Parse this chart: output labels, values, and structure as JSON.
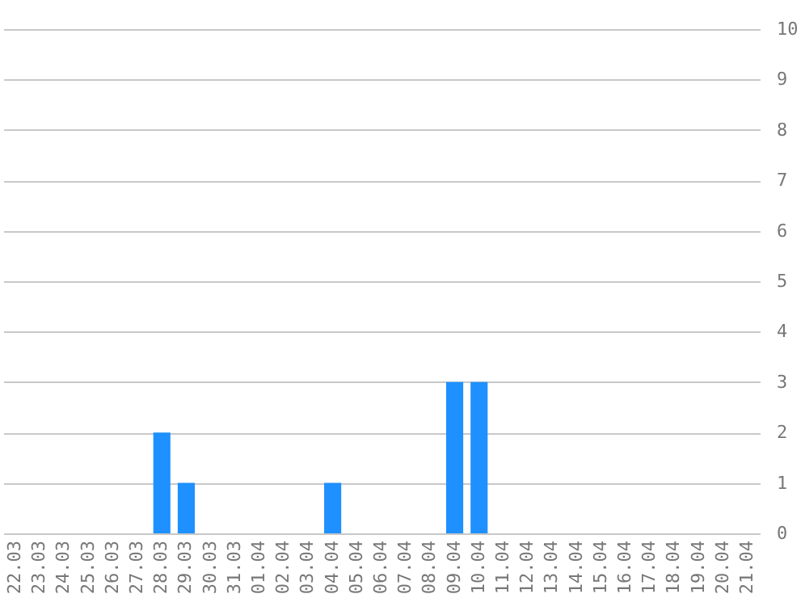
{
  "chart_data": {
    "type": "bar",
    "categories": [
      "22.03",
      "23.03",
      "24.03",
      "25.03",
      "26.03",
      "27.03",
      "28.03",
      "29.03",
      "30.03",
      "31.03",
      "01.04",
      "02.04",
      "03.04",
      "04.04",
      "05.04",
      "06.04",
      "07.04",
      "08.04",
      "09.04",
      "10.04",
      "11.04",
      "12.04",
      "13.04",
      "14.04",
      "15.04",
      "16.04",
      "17.04",
      "18.04",
      "19.04",
      "20.04",
      "21.04"
    ],
    "values": [
      0,
      0,
      0,
      0,
      0,
      0,
      2,
      1,
      0,
      0,
      0,
      0,
      0,
      1,
      0,
      0,
      0,
      0,
      3,
      3,
      0,
      0,
      0,
      0,
      0,
      0,
      0,
      0,
      0,
      0,
      0
    ],
    "color": "#1e90ff",
    "ylim": [
      0,
      10
    ],
    "yticks": [
      0,
      1,
      2,
      3,
      4,
      5,
      6,
      7,
      8,
      9,
      10
    ],
    "grid": "y"
  }
}
